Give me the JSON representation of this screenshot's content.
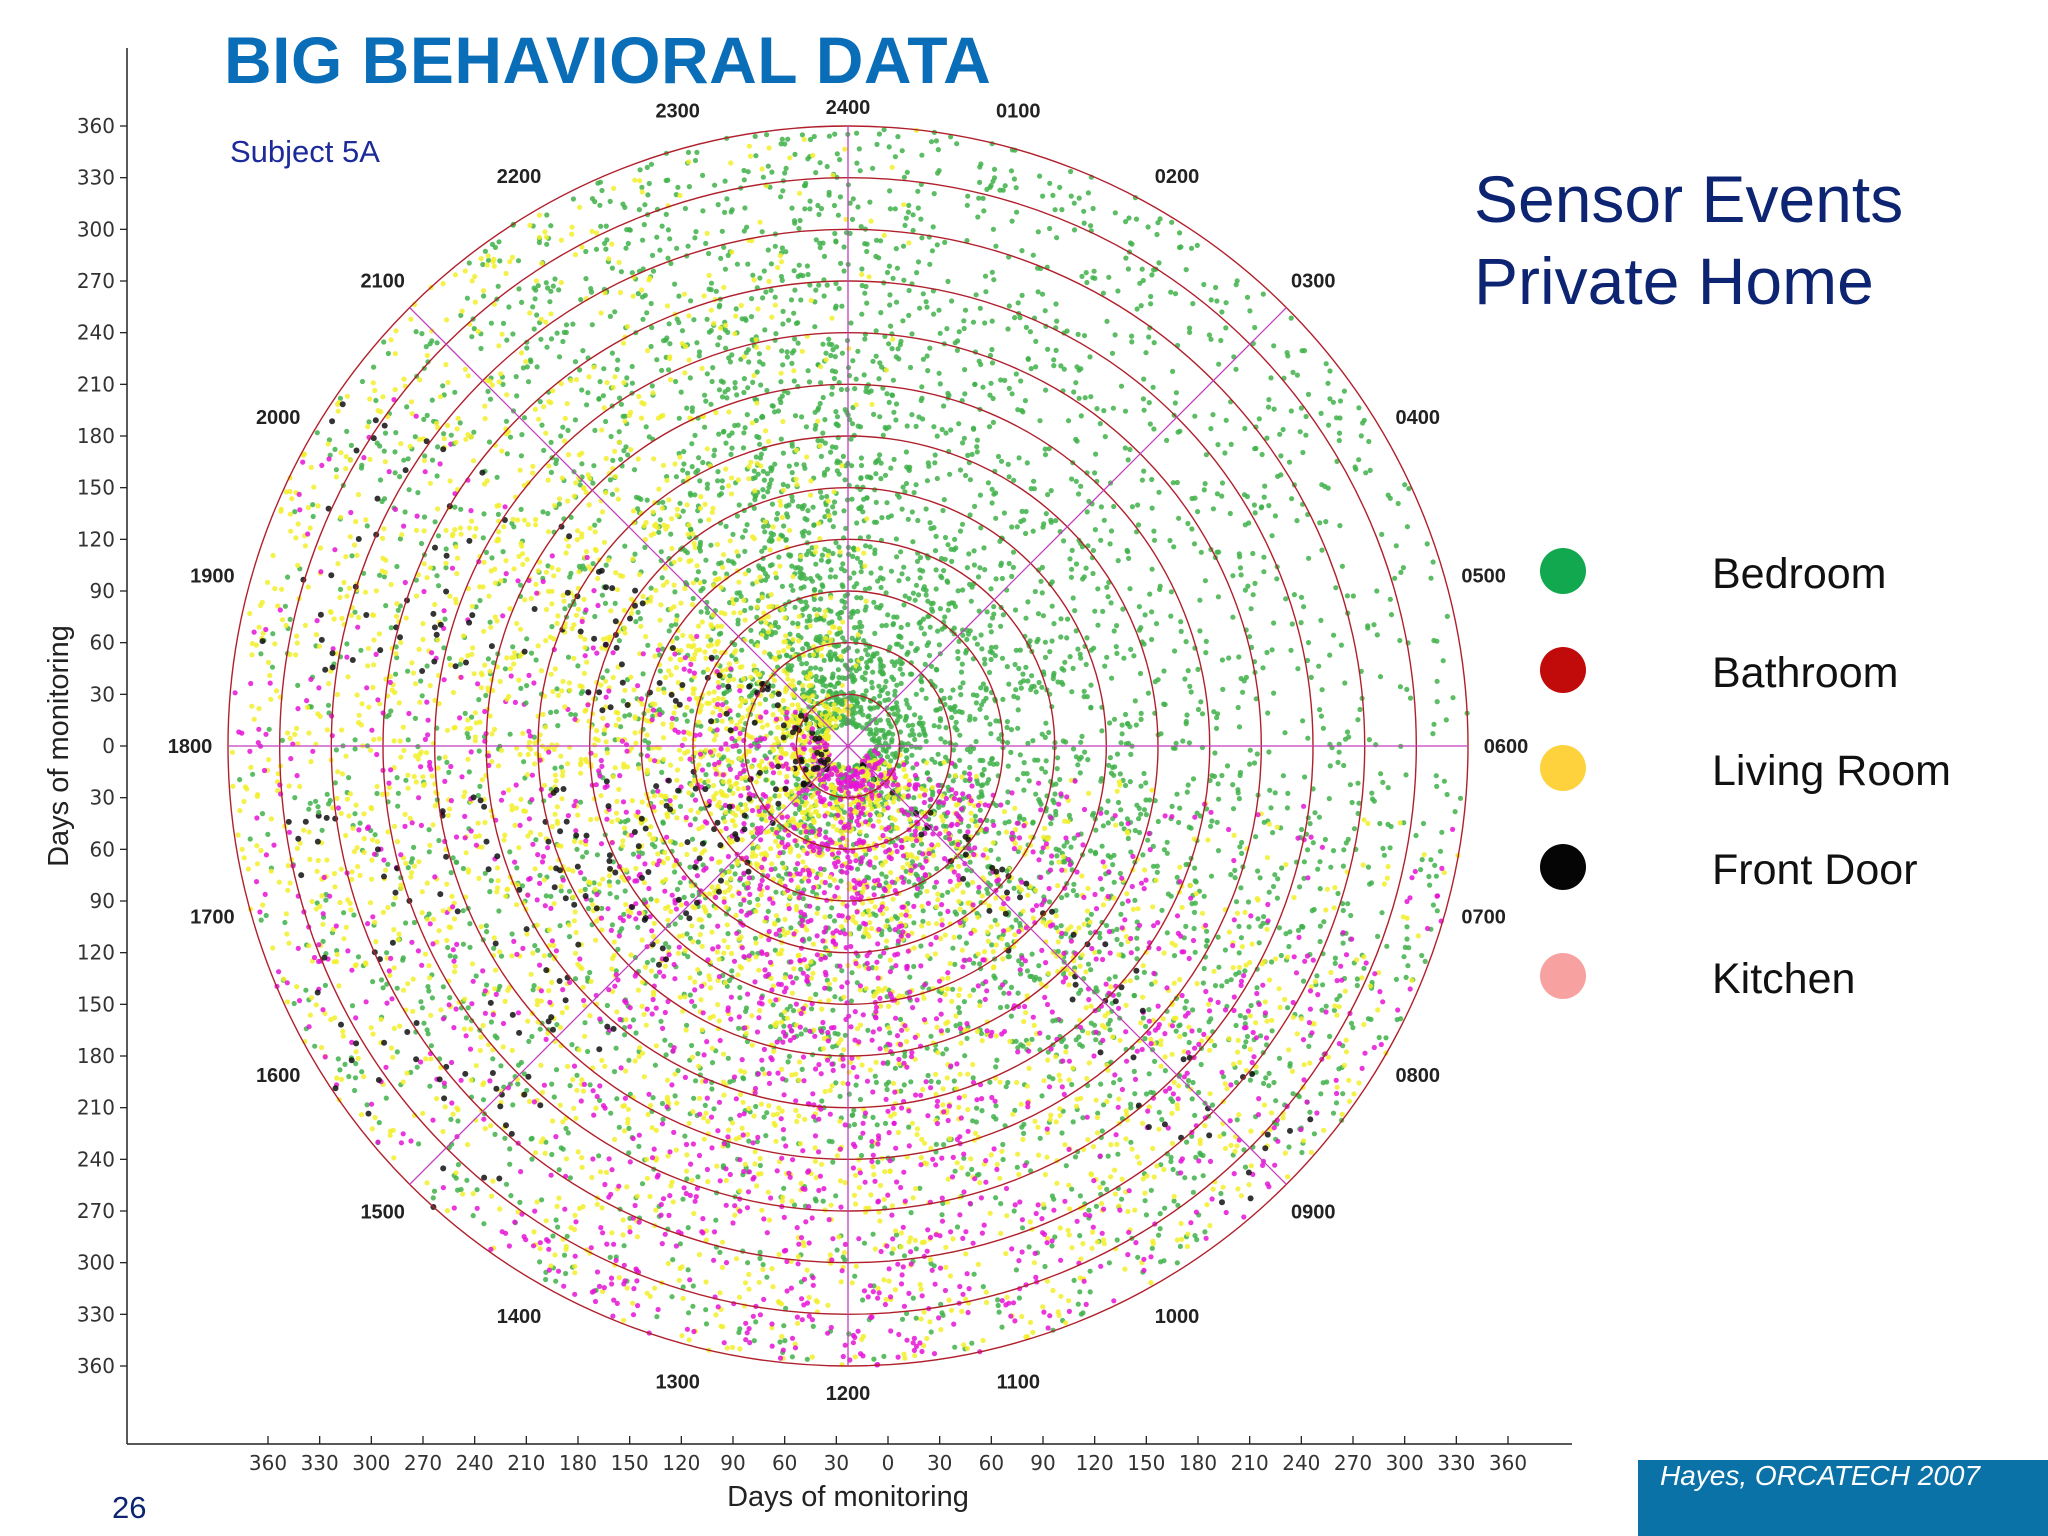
{
  "slide": {
    "title": "BIG BEHAVIORAL DATA",
    "heading_line1": "Sensor Events",
    "heading_line2": "Private Home",
    "citation": "Hayes, ORCATECH 2007",
    "page_number": "26"
  },
  "legend": [
    {
      "label": "Bedroom",
      "color": "#12a84f"
    },
    {
      "label": "Bathroom",
      "color": "#c10a0a"
    },
    {
      "label": "Living Room",
      "color": "#fdd23c"
    },
    {
      "label": "Front Door",
      "color": "#050505"
    },
    {
      "label": "Kitchen",
      "color": "#f8a1a1"
    }
  ],
  "chart_data": {
    "type": "scatter",
    "projection": "polar",
    "annotation": "Subject 5A",
    "xlabel": "Days of monitoring",
    "ylabel": "Days of monitoring",
    "radial_range": [
      0,
      360
    ],
    "x_ticks": [
      "360",
      "330",
      "300",
      "270",
      "240",
      "210",
      "180",
      "150",
      "120",
      "90",
      "60",
      "30",
      "0",
      "30",
      "60",
      "90",
      "120",
      "150",
      "180",
      "210",
      "240",
      "270",
      "300",
      "330",
      "360"
    ],
    "y_ticks": [
      "360",
      "330",
      "300",
      "270",
      "240",
      "210",
      "180",
      "150",
      "120",
      "90",
      "60",
      "30",
      "0",
      "30",
      "60",
      "90",
      "120",
      "150",
      "180",
      "210",
      "240",
      "270",
      "300",
      "330",
      "360"
    ],
    "angular_labels": [
      "2400",
      "0100",
      "0200",
      "0300",
      "0400",
      "0500",
      "0600",
      "0700",
      "0800",
      "0900",
      "1000",
      "1100",
      "1200",
      "1300",
      "1400",
      "1500",
      "1600",
      "1700",
      "1800",
      "1900",
      "2000",
      "2100",
      "2200",
      "2300"
    ],
    "ring_interval_days": 30,
    "grid": true,
    "series_colors": {
      "bedroom": "#3fb24a",
      "living_room": "#f2ee2a",
      "kitchen": "#e514d6",
      "front_door": "#111111",
      "bathroom": "#b0202c"
    },
    "series_density_by_hour": {
      "hours": [
        0,
        1,
        2,
        3,
        4,
        5,
        6,
        7,
        8,
        9,
        10,
        11,
        12,
        13,
        14,
        15,
        16,
        17,
        18,
        19,
        20,
        21,
        22,
        23
      ],
      "bedroom": [
        8,
        5,
        5,
        4,
        4,
        4,
        4,
        5,
        5,
        5,
        4,
        3,
        3,
        3,
        3,
        3,
        3,
        2,
        2,
        2,
        3,
        4,
        6,
        8
      ],
      "living_room": [
        1,
        0,
        0,
        0,
        0,
        0,
        0,
        1,
        3,
        4,
        4,
        4,
        4,
        4,
        4,
        4,
        4,
        5,
        5,
        5,
        5,
        4,
        3,
        2
      ],
      "kitchen": [
        0,
        0,
        0,
        0,
        0,
        0,
        0,
        1,
        3,
        3,
        2,
        4,
        5,
        4,
        3,
        2,
        2,
        2,
        2,
        1,
        1,
        0,
        0,
        0
      ],
      "front_door": [
        0,
        0,
        0,
        0,
        0,
        0,
        0,
        0,
        0,
        1,
        0,
        0,
        0,
        0,
        0,
        1,
        1,
        1,
        0,
        1,
        1,
        0,
        0,
        0
      ]
    }
  }
}
